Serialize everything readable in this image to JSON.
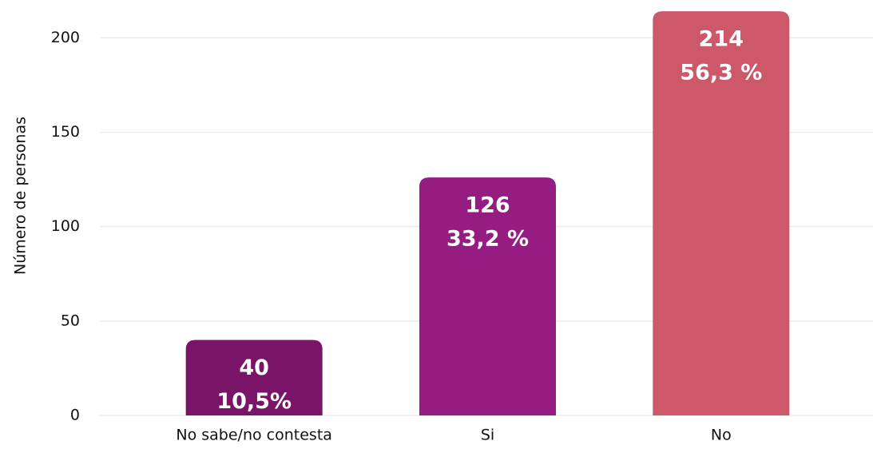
{
  "chart_data": {
    "type": "bar",
    "ylabel": "Número de personas",
    "categories": [
      "No sabe/no contesta",
      "Si",
      "No"
    ],
    "values": [
      40,
      126,
      214
    ],
    "percentages": [
      10.5,
      33.2,
      56.3
    ],
    "percentage_labels": [
      "10,5%",
      "33,2 %",
      "56,3 %"
    ],
    "colors": [
      "#7a1468",
      "#951c81",
      "#cc5869"
    ],
    "ylim": [
      0,
      220
    ],
    "yticks": [
      0,
      50,
      100,
      150,
      200
    ],
    "grid": true
  }
}
